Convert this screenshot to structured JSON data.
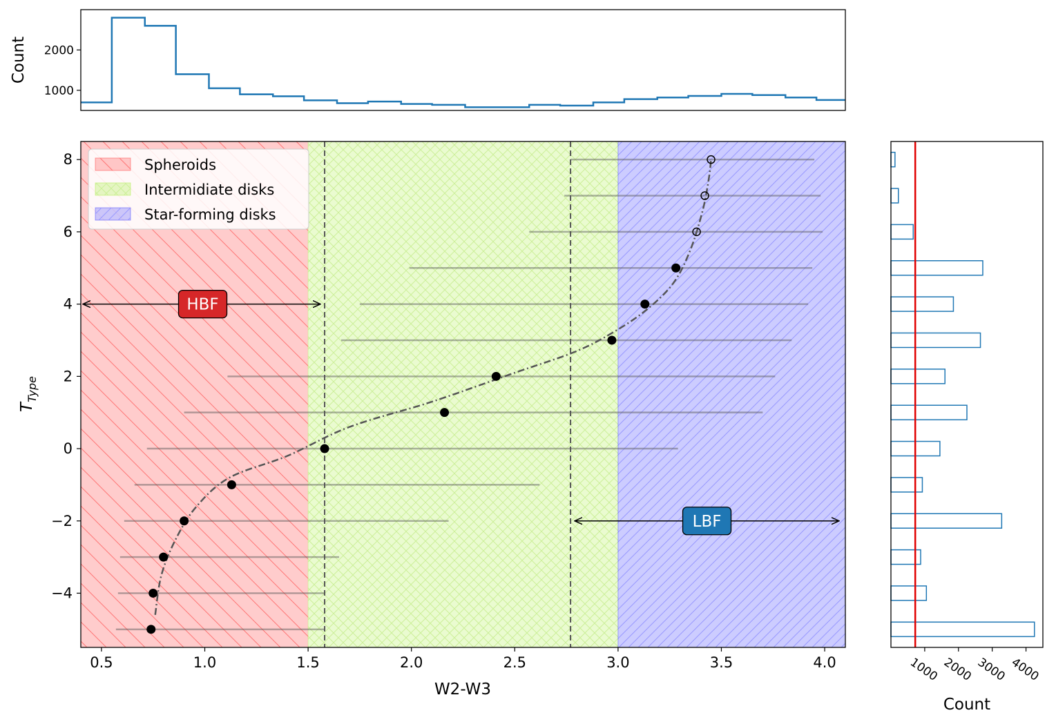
{
  "colors": {
    "spheroids": "#ff0000",
    "intermediate": "#aaee44",
    "starforming": "#0000ff",
    "hist": "#1f77b4",
    "mean_line": "#e00000",
    "hbf_box": "#d62728",
    "lbf_box": "#1f77b4",
    "errorbar": "#555555",
    "trend": "#555555"
  },
  "chart_data": [
    {
      "type": "histogram",
      "orientation": "vertical",
      "ylabel": "Count",
      "y_ticks": [
        "1000",
        "2000"
      ],
      "bins": [
        {
          "x0": 0.4,
          "x1": 0.55,
          "count": 700
        },
        {
          "x0": 0.55,
          "x1": 0.71,
          "count": 2800
        },
        {
          "x0": 0.71,
          "x1": 0.86,
          "count": 2600
        },
        {
          "x0": 0.86,
          "x1": 1.02,
          "count": 1400
        },
        {
          "x0": 1.02,
          "x1": 1.17,
          "count": 1050
        },
        {
          "x0": 1.17,
          "x1": 1.33,
          "count": 900
        },
        {
          "x0": 1.33,
          "x1": 1.48,
          "count": 850
        },
        {
          "x0": 1.48,
          "x1": 1.64,
          "count": 750
        },
        {
          "x0": 1.64,
          "x1": 1.79,
          "count": 680
        },
        {
          "x0": 1.79,
          "x1": 1.95,
          "count": 720
        },
        {
          "x0": 1.95,
          "x1": 2.1,
          "count": 660
        },
        {
          "x0": 2.1,
          "x1": 2.26,
          "count": 640
        },
        {
          "x0": 2.26,
          "x1": 2.41,
          "count": 580
        },
        {
          "x0": 2.41,
          "x1": 2.57,
          "count": 580
        },
        {
          "x0": 2.57,
          "x1": 2.72,
          "count": 640
        },
        {
          "x0": 2.72,
          "x1": 2.88,
          "count": 620
        },
        {
          "x0": 2.88,
          "x1": 3.03,
          "count": 700
        },
        {
          "x0": 3.03,
          "x1": 3.19,
          "count": 780
        },
        {
          "x0": 3.19,
          "x1": 3.34,
          "count": 820
        },
        {
          "x0": 3.34,
          "x1": 3.5,
          "count": 860
        },
        {
          "x0": 3.5,
          "x1": 3.65,
          "count": 910
        },
        {
          "x0": 3.65,
          "x1": 3.81,
          "count": 880
        },
        {
          "x0": 3.81,
          "x1": 3.96,
          "count": 820
        },
        {
          "x0": 3.96,
          "x1": 4.1,
          "count": 760
        }
      ],
      "xlim": [
        0.4,
        4.1
      ],
      "ylim": [
        500,
        3000
      ]
    },
    {
      "type": "scatter",
      "xlabel": "W2-W3",
      "ylabel_main": "T",
      "ylabel_sub": "Type",
      "xlim": [
        0.4,
        4.1
      ],
      "ylim": [
        -5.5,
        8.5
      ],
      "x_ticks": [
        "0.5",
        "1.0",
        "1.5",
        "2.0",
        "2.5",
        "3.0",
        "3.5",
        "4.0"
      ],
      "y_ticks": [
        "−4",
        "−2",
        "0",
        "2",
        "4",
        "6",
        "8"
      ],
      "regions": [
        {
          "name": "Spheroids",
          "x0": 0.4,
          "x1": 1.5,
          "color": "#ff0000",
          "hatch": "\\"
        },
        {
          "name": "Intermidiate disks",
          "x0": 1.5,
          "x1": 3.0,
          "color": "#aaee44",
          "hatch": "x"
        },
        {
          "name": "Star-forming disks",
          "x0": 3.0,
          "x1": 4.1,
          "color": "#0000ff",
          "hatch": "/"
        }
      ],
      "legend_position": "top-left",
      "vlines": [
        1.58,
        2.77
      ],
      "points": [
        {
          "y": -5,
          "x": 0.74,
          "xmin": 0.57,
          "xmax": 1.58,
          "filled": true
        },
        {
          "y": -4,
          "x": 0.75,
          "xmin": 0.58,
          "xmax": 1.58,
          "filled": true
        },
        {
          "y": -3,
          "x": 0.8,
          "xmin": 0.59,
          "xmax": 1.65,
          "filled": true
        },
        {
          "y": -2,
          "x": 0.9,
          "xmin": 0.61,
          "xmax": 2.18,
          "filled": true
        },
        {
          "y": -1,
          "x": 1.13,
          "xmin": 0.66,
          "xmax": 2.62,
          "filled": true
        },
        {
          "y": 0,
          "x": 1.58,
          "xmin": 0.72,
          "xmax": 3.29,
          "filled": true
        },
        {
          "y": 1,
          "x": 2.16,
          "xmin": 0.9,
          "xmax": 3.7,
          "filled": true
        },
        {
          "y": 2,
          "x": 2.41,
          "xmin": 1.11,
          "xmax": 3.76,
          "filled": true
        },
        {
          "y": 3,
          "x": 2.97,
          "xmin": 1.66,
          "xmax": 3.84,
          "filled": true
        },
        {
          "y": 4,
          "x": 3.13,
          "xmin": 1.75,
          "xmax": 3.92,
          "filled": true
        },
        {
          "y": 5,
          "x": 3.28,
          "xmin": 1.99,
          "xmax": 3.94,
          "filled": true
        },
        {
          "y": 6,
          "x": 3.38,
          "xmin": 2.57,
          "xmax": 3.99,
          "filled": false
        },
        {
          "y": 7,
          "x": 3.42,
          "xmin": 2.74,
          "xmax": 3.98,
          "filled": false
        },
        {
          "y": 8,
          "x": 3.45,
          "xmin": 2.77,
          "xmax": 3.95,
          "filled": false
        }
      ],
      "trend": [
        [
          0.76,
          -4.6
        ],
        [
          0.79,
          -3.5
        ],
        [
          0.86,
          -2.5
        ],
        [
          0.96,
          -1.6
        ],
        [
          1.12,
          -0.8
        ],
        [
          1.4,
          -0.2
        ],
        [
          1.7,
          0.6
        ],
        [
          2.1,
          1.3
        ],
        [
          2.5,
          2.1
        ],
        [
          2.8,
          2.7
        ],
        [
          3.0,
          3.3
        ],
        [
          3.15,
          3.9
        ],
        [
          3.27,
          4.6
        ],
        [
          3.35,
          5.5
        ],
        [
          3.41,
          6.6
        ],
        [
          3.44,
          7.5
        ],
        [
          3.45,
          8.0
        ]
      ],
      "arrows": [
        {
          "label": "HBF",
          "y": 4,
          "x_from": 0.4,
          "x_to": 1.57,
          "label_x": 0.99
        },
        {
          "label": "LBF",
          "y": -2,
          "x_from": 2.78,
          "x_to": 4.08,
          "label_x": 3.43
        }
      ]
    },
    {
      "type": "histogram",
      "orientation": "horizontal",
      "xlabel": "Count",
      "x_ticks": [
        "1000",
        "2000",
        "3000",
        "4000"
      ],
      "xlim": [
        0,
        4500
      ],
      "mean_line": 720,
      "bars": [
        {
          "y": -5,
          "count": 4250
        },
        {
          "y": -4,
          "count": 1050
        },
        {
          "y": -3,
          "count": 880
        },
        {
          "y": -2,
          "count": 3280
        },
        {
          "y": -1,
          "count": 930
        },
        {
          "y": 0,
          "count": 1450
        },
        {
          "y": 1,
          "count": 2250
        },
        {
          "y": 2,
          "count": 1600
        },
        {
          "y": 3,
          "count": 2650
        },
        {
          "y": 4,
          "count": 1850
        },
        {
          "y": 5,
          "count": 2720
        },
        {
          "y": 6,
          "count": 660
        },
        {
          "y": 7,
          "count": 220
        },
        {
          "y": 8,
          "count": 120
        }
      ]
    }
  ]
}
